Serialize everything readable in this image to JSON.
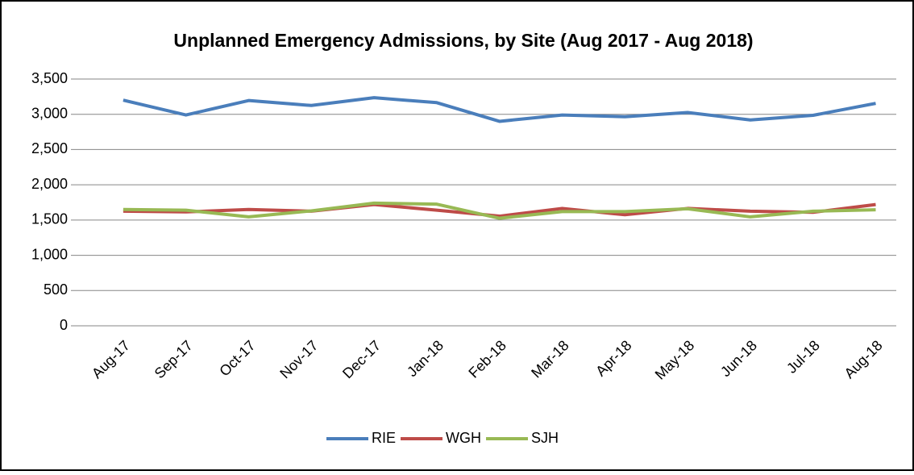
{
  "chart_data": {
    "type": "line",
    "title": "Unplanned Emergency Admissions, by Site (Aug 2017 - Aug 2018)",
    "categories": [
      "Aug-17",
      "Sep-17",
      "Oct-17",
      "Nov-17",
      "Dec-17",
      "Jan-18",
      "Feb-18",
      "Mar-18",
      "Apr-18",
      "May-18",
      "Jun-18",
      "Jul-18",
      "Aug-18"
    ],
    "series": [
      {
        "name": "RIE",
        "color": "#4a7ebb",
        "values": [
          3200,
          2990,
          3195,
          3125,
          3235,
          3165,
          2900,
          2990,
          2965,
          3025,
          2920,
          2985,
          3155
        ]
      },
      {
        "name": "WGH",
        "color": "#be4b48",
        "values": [
          1625,
          1615,
          1650,
          1625,
          1720,
          1640,
          1555,
          1665,
          1575,
          1665,
          1625,
          1610,
          1720
        ]
      },
      {
        "name": "SJH",
        "color": "#98b954",
        "values": [
          1650,
          1640,
          1545,
          1630,
          1740,
          1725,
          1525,
          1620,
          1620,
          1660,
          1545,
          1625,
          1645
        ]
      }
    ],
    "ylim": [
      0,
      3500
    ],
    "yticks": [
      0,
      500,
      {
        "value": 1000,
        "label": "1,000"
      },
      {
        "value": 1500,
        "label": "1,500"
      },
      {
        "value": 2000,
        "label": "2,000"
      },
      {
        "value": 2500,
        "label": "2,500"
      },
      {
        "value": 3000,
        "label": "3,000"
      },
      {
        "value": 3500,
        "label": "3,500"
      }
    ],
    "grid": true,
    "legend": "bottom"
  }
}
